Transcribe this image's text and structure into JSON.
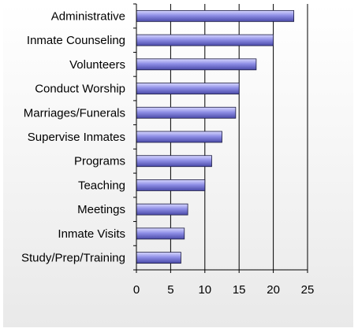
{
  "chart_data": {
    "type": "bar",
    "orientation": "horizontal",
    "categories": [
      "Administrative",
      "Inmate Counseling",
      "Volunteers",
      "Conduct Worship",
      "Marriages/Funerals",
      "Supervise Inmates",
      "Programs",
      "Teaching",
      "Meetings",
      "Inmate Visits",
      "Study/Prep/Training"
    ],
    "values": [
      23,
      20,
      17.5,
      15,
      14.5,
      12.5,
      11,
      10,
      7.5,
      7,
      6.5
    ],
    "xlim": [
      0,
      25
    ],
    "xticks": [
      "0",
      "5",
      "10",
      "15",
      "20",
      "25"
    ],
    "grid": true,
    "legend": "none",
    "title": "",
    "xlabel": "",
    "ylabel": "",
    "colors": {
      "bar_top": "#d8d8ff",
      "bar_mid": "#8f8fe6",
      "bar_bottom": "#4a4aa8",
      "bar_edge": "#1a1a40",
      "grid": "#000000",
      "frame_bg": "#f2f2f2"
    }
  }
}
